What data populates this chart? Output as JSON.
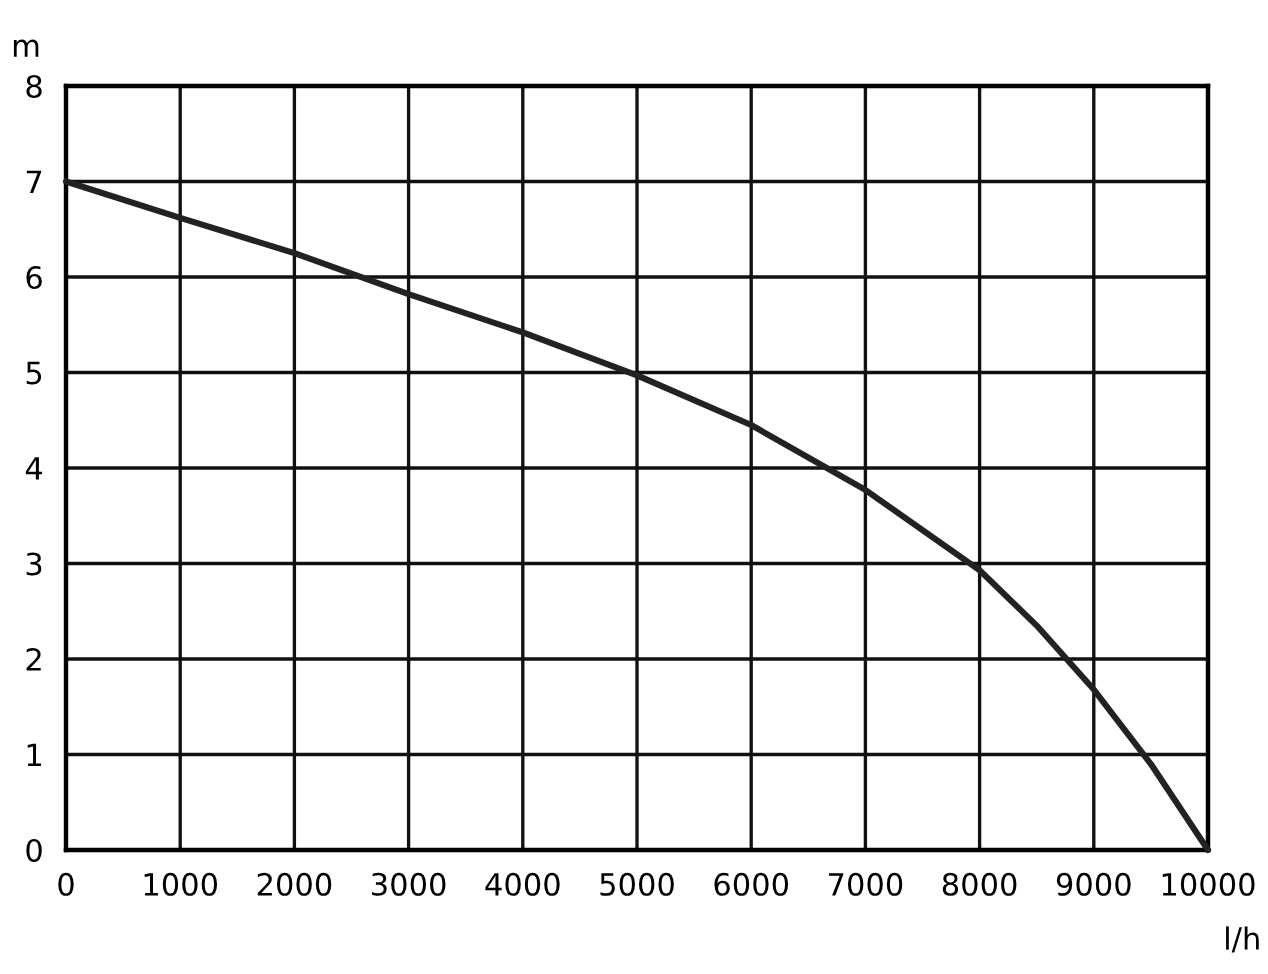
{
  "chart_data": {
    "type": "line",
    "xlabel": "l/h",
    "ylabel": "m",
    "x": [
      0,
      1000,
      2000,
      3000,
      4000,
      5000,
      6000,
      7000,
      8000,
      8500,
      9000,
      9500,
      10000
    ],
    "series": [
      {
        "color": "#222222",
        "values": [
          7.0,
          6.62,
          6.25,
          5.82,
          5.42,
          4.97,
          4.45,
          3.77,
          2.93,
          2.35,
          1.68,
          0.9,
          0.0
        ]
      }
    ],
    "xlim": [
      0,
      10000
    ],
    "ylim": [
      0,
      8
    ],
    "xticks": [
      0,
      1000,
      2000,
      3000,
      4000,
      5000,
      6000,
      7000,
      8000,
      9000,
      10000
    ],
    "yticks": [
      0,
      1,
      2,
      3,
      4,
      5,
      6,
      7,
      8
    ],
    "grid": true,
    "marker": "none",
    "line_style": "solid"
  }
}
